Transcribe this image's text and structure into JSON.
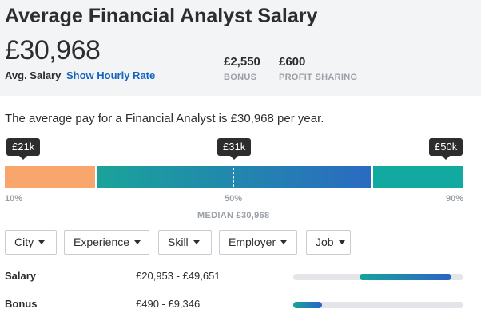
{
  "header": {
    "title": "Average Financial Analyst Salary",
    "avg_salary": "£30,968",
    "avg_salary_label": "Avg. Salary",
    "hourly_link": "Show Hourly Rate",
    "bonus": {
      "value": "£2,550",
      "label": "BONUS"
    },
    "profit_sharing": {
      "value": "£600",
      "label": "PROFIT SHARING"
    }
  },
  "summary": "The average pay for a Financial Analyst is £30,968 per year.",
  "distribution": {
    "tooltips": [
      "£21k",
      "£31k",
      "£50k"
    ],
    "percentiles": [
      "10%",
      "50%",
      "90%"
    ],
    "median_label": "MEDIAN £30,968",
    "colors": {
      "low": "#f9a66c",
      "mid_start": "#1aa39a",
      "mid_end": "#2a6bc1",
      "high": "#12a9a0"
    }
  },
  "filters": [
    "City",
    "Experience",
    "Skill",
    "Employer",
    "Job"
  ],
  "rows": [
    {
      "label": "Salary",
      "range": "£20,953 - £49,651",
      "fill_start": 0.39,
      "fill_end": 0.93
    },
    {
      "label": "Bonus",
      "range": "£490 - £9,346",
      "fill_start": 0.0,
      "fill_end": 0.17
    }
  ]
}
